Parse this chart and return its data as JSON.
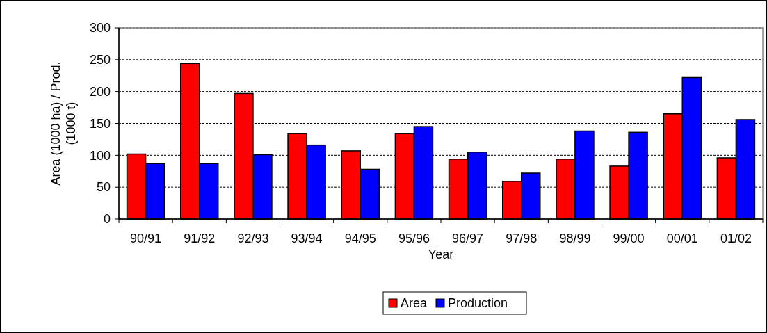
{
  "chart_data": {
    "type": "bar",
    "categories": [
      "90/91",
      "91/92",
      "92/93",
      "93/94",
      "94/95",
      "95/96",
      "96/97",
      "97/98",
      "98/99",
      "99/00",
      "00/01",
      "01/02"
    ],
    "series": [
      {
        "name": "Area",
        "color": "#ff0000",
        "values": [
          102,
          244,
          197,
          134,
          107,
          134,
          94,
          59,
          94,
          83,
          165,
          96
        ]
      },
      {
        "name": "Production",
        "color": "#0000ff",
        "values": [
          87,
          87,
          101,
          116,
          78,
          145,
          105,
          72,
          138,
          136,
          222,
          156
        ]
      }
    ],
    "xlabel": "Year",
    "ylabel": "Area (1000 ha) / Prod.\n(1000 t)",
    "ylim": [
      0,
      300
    ],
    "yticks": [
      0,
      50,
      100,
      150,
      200,
      250,
      300
    ],
    "grid": "y",
    "legend": "bottom"
  }
}
